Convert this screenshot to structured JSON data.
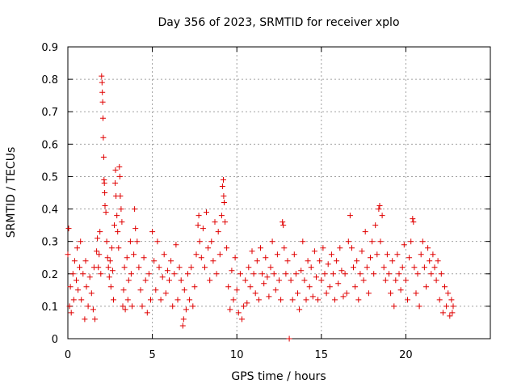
{
  "chart_data": {
    "type": "scatter",
    "title": "Day 356 of 2023, SRMTID for receiver xplo",
    "xlabel": "GPS time / hours",
    "ylabel": "SRMTID / TECUs",
    "xlim": [
      0,
      25
    ],
    "ylim": [
      0,
      0.9
    ],
    "xticks": [
      0,
      5,
      10,
      15,
      20
    ],
    "yticks": [
      0,
      0.1,
      0.2,
      0.3,
      0.4,
      0.5,
      0.6,
      0.7,
      0.8,
      0.9
    ],
    "xtick_labels": [
      "0",
      "5",
      "10",
      "15",
      "20"
    ],
    "ytick_labels": [
      "0",
      "0.1",
      "0.2",
      "0.3",
      "0.4",
      "0.5",
      "0.6",
      "0.7",
      "0.8",
      "0.9"
    ],
    "grid": true,
    "marker": "+",
    "color": "#e00000",
    "series": [
      {
        "name": "SRMTID",
        "points": [
          [
            0.0,
            0.26
          ],
          [
            0.05,
            0.34
          ],
          [
            0.1,
            0.1
          ],
          [
            0.15,
            0.16
          ],
          [
            0.2,
            0.08
          ],
          [
            0.3,
            0.2
          ],
          [
            0.35,
            0.12
          ],
          [
            0.4,
            0.24
          ],
          [
            0.5,
            0.18
          ],
          [
            0.55,
            0.28
          ],
          [
            0.6,
            0.15
          ],
          [
            0.7,
            0.22
          ],
          [
            0.75,
            0.3
          ],
          [
            0.8,
            0.12
          ],
          [
            0.9,
            0.2
          ],
          [
            1.0,
            0.06
          ],
          [
            1.05,
            0.24
          ],
          [
            1.1,
            0.16
          ],
          [
            1.2,
            0.1
          ],
          [
            1.3,
            0.19
          ],
          [
            1.4,
            0.14
          ],
          [
            1.5,
            0.09
          ],
          [
            1.55,
            0.22
          ],
          [
            1.6,
            0.06
          ],
          [
            1.7,
            0.27
          ],
          [
            1.75,
            0.31
          ],
          [
            1.8,
            0.22
          ],
          [
            1.85,
            0.26
          ],
          [
            1.9,
            0.33
          ],
          [
            1.95,
            0.2
          ],
          [
            2.0,
            0.81
          ],
          [
            2.02,
            0.79
          ],
          [
            2.04,
            0.76
          ],
          [
            2.06,
            0.73
          ],
          [
            2.08,
            0.68
          ],
          [
            2.1,
            0.62
          ],
          [
            2.12,
            0.56
          ],
          [
            2.14,
            0.49
          ],
          [
            2.16,
            0.48
          ],
          [
            2.18,
            0.45
          ],
          [
            2.2,
            0.41
          ],
          [
            2.25,
            0.39
          ],
          [
            2.3,
            0.3
          ],
          [
            2.35,
            0.25
          ],
          [
            2.4,
            0.22
          ],
          [
            2.45,
            0.19
          ],
          [
            2.5,
            0.24
          ],
          [
            2.55,
            0.16
          ],
          [
            2.6,
            0.28
          ],
          [
            2.65,
            0.21
          ],
          [
            2.7,
            0.12
          ],
          [
            2.75,
            0.35
          ],
          [
            2.8,
            0.48
          ],
          [
            2.82,
            0.52
          ],
          [
            2.85,
            0.44
          ],
          [
            2.9,
            0.38
          ],
          [
            2.95,
            0.33
          ],
          [
            3.0,
            0.28
          ],
          [
            3.05,
            0.53
          ],
          [
            3.08,
            0.5
          ],
          [
            3.1,
            0.44
          ],
          [
            3.15,
            0.4
          ],
          [
            3.2,
            0.36
          ],
          [
            3.25,
            0.1
          ],
          [
            3.3,
            0.15
          ],
          [
            3.35,
            0.22
          ],
          [
            3.4,
            0.09
          ],
          [
            3.5,
            0.25
          ],
          [
            3.55,
            0.12
          ],
          [
            3.6,
            0.18
          ],
          [
            3.7,
            0.3
          ],
          [
            3.75,
            0.2
          ],
          [
            3.8,
            0.1
          ],
          [
            3.9,
            0.26
          ],
          [
            3.95,
            0.4
          ],
          [
            4.0,
            0.34
          ],
          [
            4.1,
            0.3
          ],
          [
            4.2,
            0.22
          ],
          [
            4.3,
            0.15
          ],
          [
            4.4,
            0.1
          ],
          [
            4.5,
            0.25
          ],
          [
            4.6,
            0.18
          ],
          [
            4.7,
            0.08
          ],
          [
            4.8,
            0.2
          ],
          [
            4.9,
            0.12
          ],
          [
            5.0,
            0.33
          ],
          [
            5.1,
            0.24
          ],
          [
            5.2,
            0.15
          ],
          [
            5.3,
            0.3
          ],
          [
            5.4,
            0.22
          ],
          [
            5.5,
            0.12
          ],
          [
            5.6,
            0.19
          ],
          [
            5.7,
            0.26
          ],
          [
            5.8,
            0.14
          ],
          [
            5.9,
            0.21
          ],
          [
            6.0,
            0.18
          ],
          [
            6.1,
            0.24
          ],
          [
            6.2,
            0.1
          ],
          [
            6.3,
            0.2
          ],
          [
            6.4,
            0.29
          ],
          [
            6.5,
            0.12
          ],
          [
            6.6,
            0.22
          ],
          [
            6.7,
            0.18
          ],
          [
            6.8,
            0.04
          ],
          [
            6.85,
            0.06
          ],
          [
            6.9,
            0.15
          ],
          [
            7.0,
            0.09
          ],
          [
            7.1,
            0.2
          ],
          [
            7.2,
            0.12
          ],
          [
            7.3,
            0.22
          ],
          [
            7.4,
            0.1
          ],
          [
            7.5,
            0.16
          ],
          [
            7.6,
            0.26
          ],
          [
            7.7,
            0.35
          ],
          [
            7.75,
            0.38
          ],
          [
            7.8,
            0.3
          ],
          [
            7.9,
            0.25
          ],
          [
            8.0,
            0.34
          ],
          [
            8.1,
            0.22
          ],
          [
            8.2,
            0.39
          ],
          [
            8.3,
            0.28
          ],
          [
            8.4,
            0.18
          ],
          [
            8.5,
            0.3
          ],
          [
            8.6,
            0.24
          ],
          [
            8.7,
            0.36
          ],
          [
            8.8,
            0.2
          ],
          [
            8.9,
            0.33
          ],
          [
            9.0,
            0.26
          ],
          [
            9.1,
            0.38
          ],
          [
            9.15,
            0.47
          ],
          [
            9.2,
            0.49
          ],
          [
            9.22,
            0.44
          ],
          [
            9.25,
            0.42
          ],
          [
            9.3,
            0.36
          ],
          [
            9.4,
            0.28
          ],
          [
            9.5,
            0.16
          ],
          [
            9.6,
            0.09
          ],
          [
            9.7,
            0.21
          ],
          [
            9.8,
            0.12
          ],
          [
            9.9,
            0.25
          ],
          [
            10.0,
            0.15
          ],
          [
            10.1,
            0.08
          ],
          [
            10.2,
            0.2
          ],
          [
            10.3,
            0.06
          ],
          [
            10.4,
            0.1
          ],
          [
            10.5,
            0.18
          ],
          [
            10.6,
            0.11
          ],
          [
            10.7,
            0.22
          ],
          [
            10.8,
            0.16
          ],
          [
            10.9,
            0.27
          ],
          [
            11.0,
            0.2
          ],
          [
            11.1,
            0.14
          ],
          [
            11.2,
            0.24
          ],
          [
            11.3,
            0.12
          ],
          [
            11.4,
            0.28
          ],
          [
            11.5,
            0.2
          ],
          [
            11.6,
            0.17
          ],
          [
            11.7,
            0.25
          ],
          [
            11.8,
            0.19
          ],
          [
            11.9,
            0.13
          ],
          [
            12.0,
            0.22
          ],
          [
            12.1,
            0.3
          ],
          [
            12.2,
            0.2
          ],
          [
            12.3,
            0.15
          ],
          [
            12.4,
            0.26
          ],
          [
            12.5,
            0.18
          ],
          [
            12.6,
            0.12
          ],
          [
            12.7,
            0.36
          ],
          [
            12.75,
            0.35
          ],
          [
            12.8,
            0.28
          ],
          [
            12.9,
            0.2
          ],
          [
            13.0,
            0.24
          ],
          [
            13.1,
            0.0
          ],
          [
            13.2,
            0.18
          ],
          [
            13.3,
            0.12
          ],
          [
            13.4,
            0.26
          ],
          [
            13.5,
            0.2
          ],
          [
            13.6,
            0.14
          ],
          [
            13.7,
            0.09
          ],
          [
            13.8,
            0.21
          ],
          [
            13.9,
            0.3
          ],
          [
            14.0,
            0.18
          ],
          [
            14.1,
            0.12
          ],
          [
            14.2,
            0.24
          ],
          [
            14.3,
            0.16
          ],
          [
            14.4,
            0.22
          ],
          [
            14.5,
            0.13
          ],
          [
            14.6,
            0.27
          ],
          [
            14.7,
            0.19
          ],
          [
            14.8,
            0.12
          ],
          [
            14.9,
            0.24
          ],
          [
            15.0,
            0.18
          ],
          [
            15.1,
            0.28
          ],
          [
            15.2,
            0.2
          ],
          [
            15.3,
            0.14
          ],
          [
            15.4,
            0.23
          ],
          [
            15.5,
            0.16
          ],
          [
            15.6,
            0.26
          ],
          [
            15.7,
            0.2
          ],
          [
            15.8,
            0.12
          ],
          [
            15.9,
            0.24
          ],
          [
            16.0,
            0.17
          ],
          [
            16.1,
            0.28
          ],
          [
            16.2,
            0.21
          ],
          [
            16.3,
            0.13
          ],
          [
            16.4,
            0.2
          ],
          [
            16.5,
            0.14
          ],
          [
            16.6,
            0.3
          ],
          [
            16.7,
            0.38
          ],
          [
            16.8,
            0.28
          ],
          [
            16.9,
            0.22
          ],
          [
            17.0,
            0.16
          ],
          [
            17.1,
            0.24
          ],
          [
            17.2,
            0.12
          ],
          [
            17.3,
            0.2
          ],
          [
            17.4,
            0.27
          ],
          [
            17.5,
            0.18
          ],
          [
            17.6,
            0.33
          ],
          [
            17.7,
            0.22
          ],
          [
            17.8,
            0.14
          ],
          [
            17.9,
            0.25
          ],
          [
            18.0,
            0.3
          ],
          [
            18.1,
            0.2
          ],
          [
            18.2,
            0.35
          ],
          [
            18.3,
            0.26
          ],
          [
            18.4,
            0.4
          ],
          [
            18.45,
            0.41
          ],
          [
            18.5,
            0.3
          ],
          [
            18.6,
            0.38
          ],
          [
            18.7,
            0.22
          ],
          [
            18.8,
            0.18
          ],
          [
            18.9,
            0.26
          ],
          [
            19.0,
            0.2
          ],
          [
            19.1,
            0.14
          ],
          [
            19.2,
            0.24
          ],
          [
            19.3,
            0.1
          ],
          [
            19.4,
            0.18
          ],
          [
            19.5,
            0.26
          ],
          [
            19.6,
            0.2
          ],
          [
            19.7,
            0.15
          ],
          [
            19.8,
            0.22
          ],
          [
            19.9,
            0.29
          ],
          [
            20.0,
            0.18
          ],
          [
            20.1,
            0.12
          ],
          [
            20.2,
            0.25
          ],
          [
            20.3,
            0.3
          ],
          [
            20.4,
            0.37
          ],
          [
            20.45,
            0.36
          ],
          [
            20.5,
            0.22
          ],
          [
            20.6,
            0.14
          ],
          [
            20.7,
            0.2
          ],
          [
            20.8,
            0.1
          ],
          [
            20.9,
            0.26
          ],
          [
            21.0,
            0.3
          ],
          [
            21.1,
            0.22
          ],
          [
            21.2,
            0.16
          ],
          [
            21.3,
            0.28
          ],
          [
            21.4,
            0.24
          ],
          [
            21.5,
            0.2
          ],
          [
            21.6,
            0.26
          ],
          [
            21.7,
            0.22
          ],
          [
            21.8,
            0.18
          ],
          [
            21.9,
            0.24
          ],
          [
            22.0,
            0.12
          ],
          [
            22.1,
            0.2
          ],
          [
            22.2,
            0.08
          ],
          [
            22.3,
            0.16
          ],
          [
            22.4,
            0.1
          ],
          [
            22.5,
            0.14
          ],
          [
            22.6,
            0.07
          ],
          [
            22.7,
            0.12
          ],
          [
            22.75,
            0.08
          ],
          [
            22.8,
            0.1
          ]
        ]
      }
    ]
  }
}
